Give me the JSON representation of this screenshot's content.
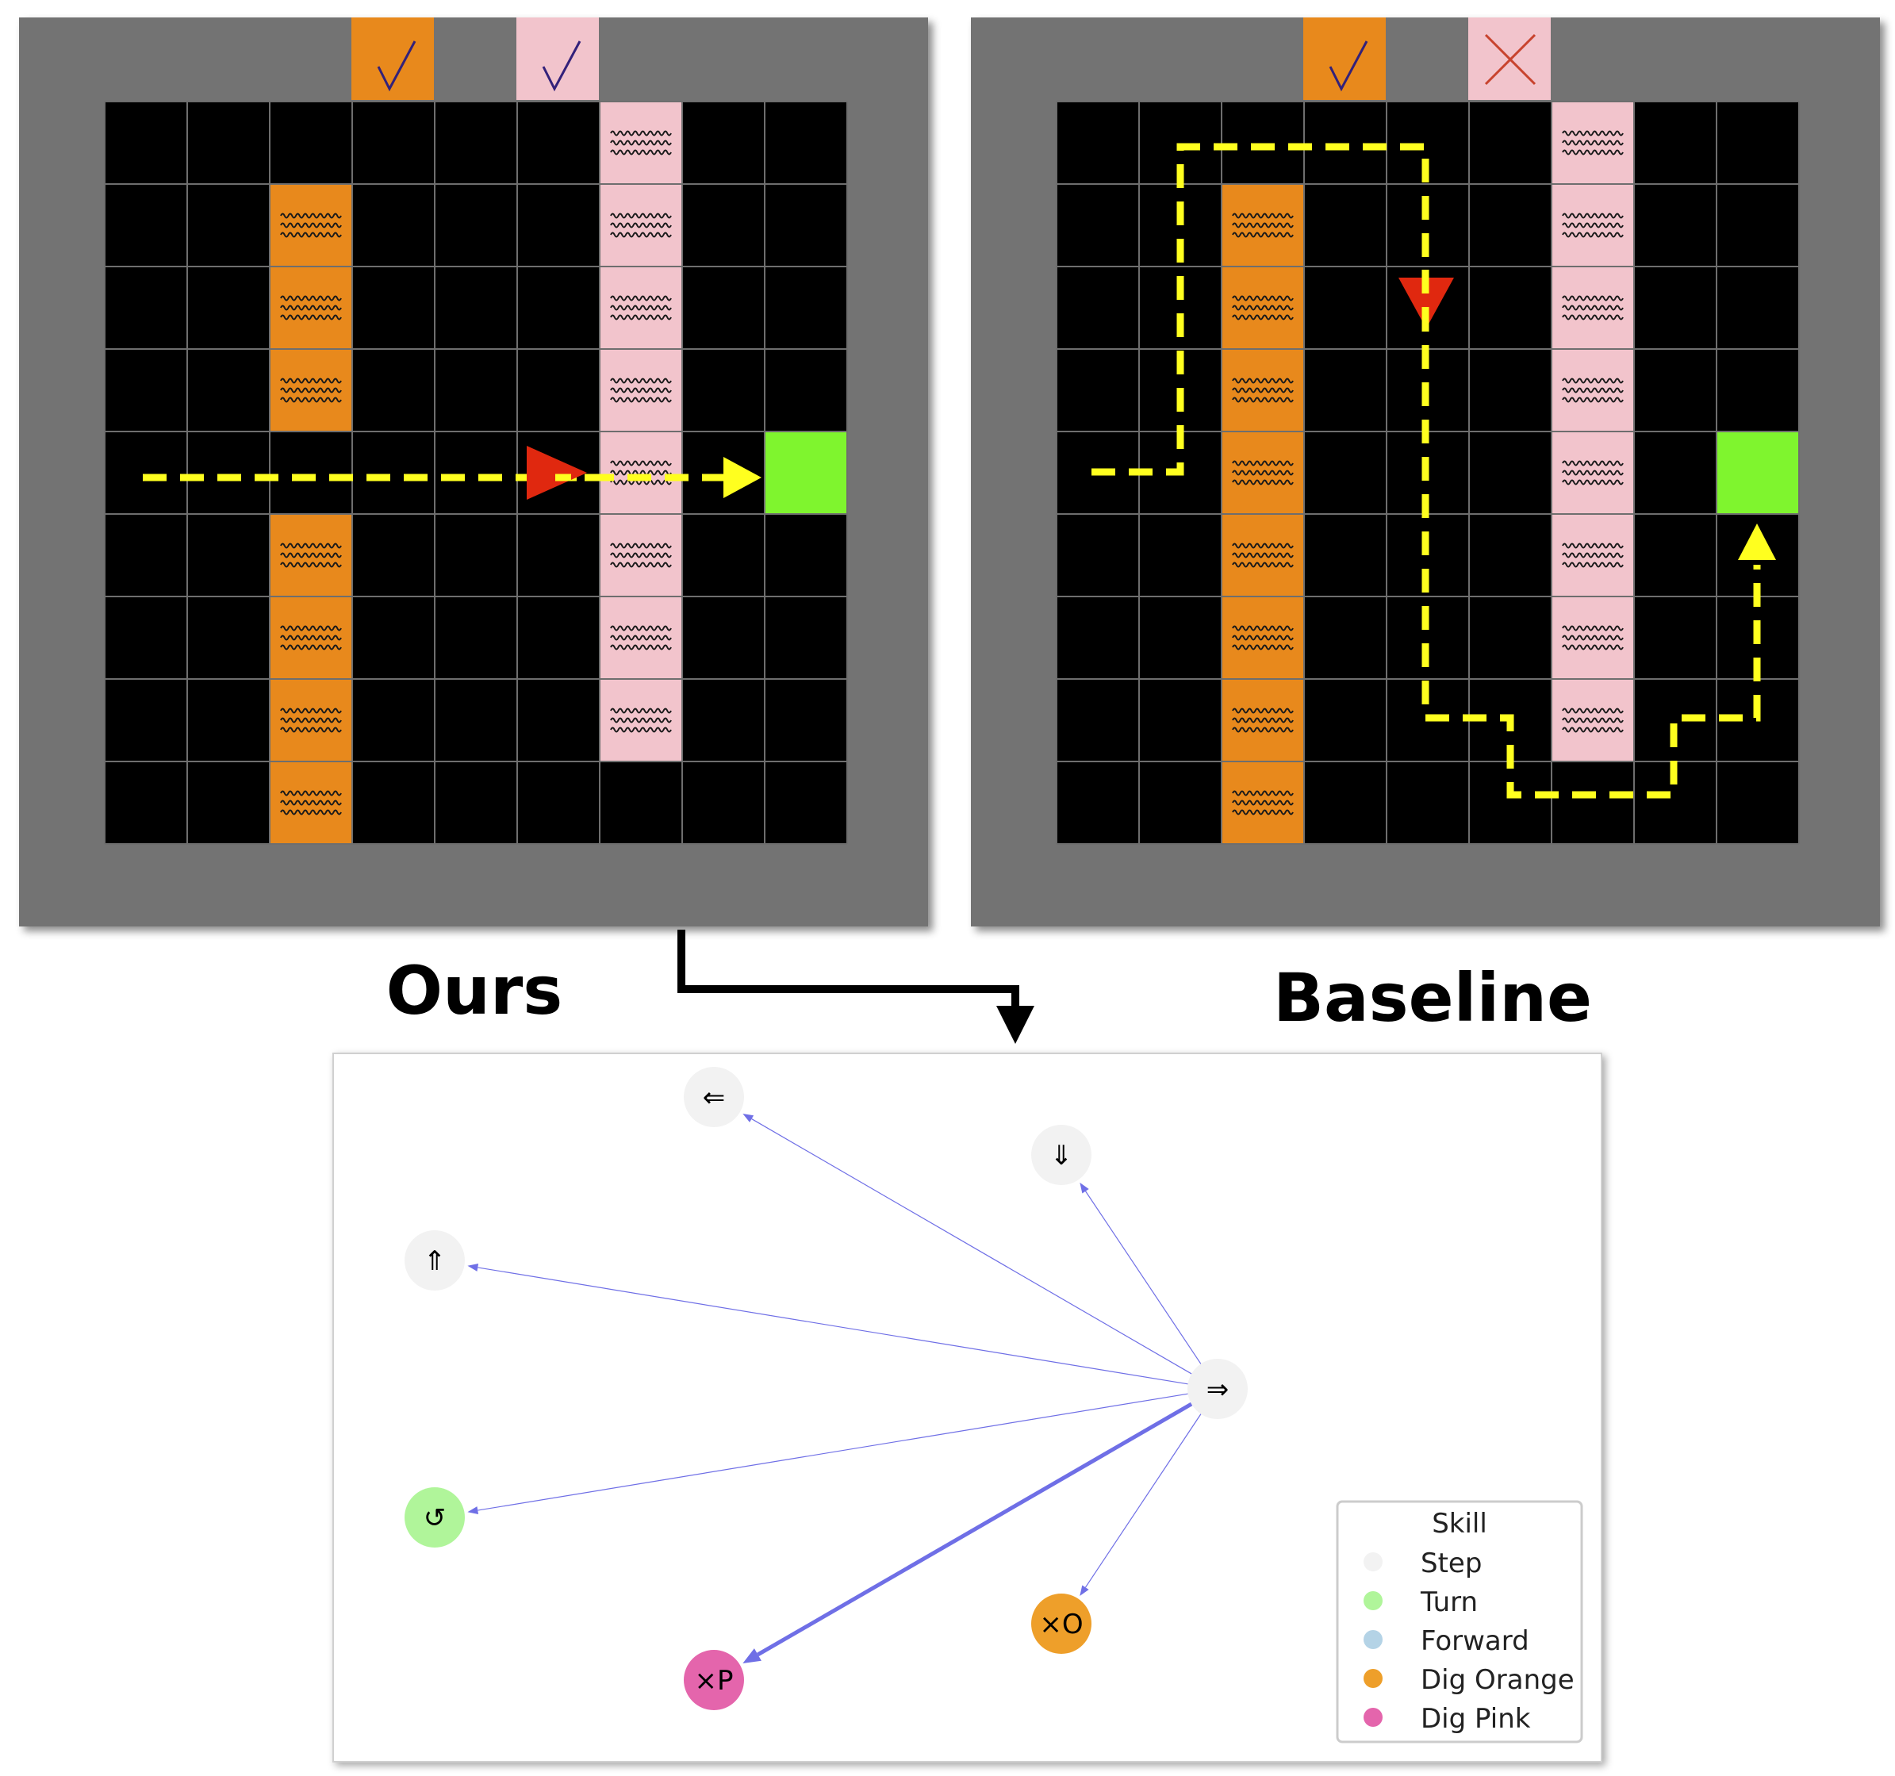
{
  "labels": {
    "ours": "Ours",
    "baseline": "Baseline"
  },
  "ours": {
    "indicators": [
      {
        "name": "orange-indicator",
        "color": "#e8891c",
        "mark": "check-icon"
      },
      {
        "name": "pink-indicator",
        "color": "#f2c4cc",
        "mark": "check-icon"
      }
    ]
  },
  "baseline": {
    "indicators": [
      {
        "name": "orange-indicator",
        "color": "#e8891c",
        "mark": "check-icon"
      },
      {
        "name": "pink-indicator",
        "color": "#f2c4cc",
        "mark": "cross-icon"
      }
    ]
  },
  "colors": {
    "frame": "#737373",
    "floor": "#000000",
    "grid": "#6e6e6e",
    "orange": "#e8891c",
    "pink": "#f2c4cc",
    "goal": "#7ff52e",
    "agent": "#e0280f",
    "path": "#ffff1f"
  },
  "graph": {
    "nodes": [
      {
        "id": "left",
        "label": "⇐",
        "skill": "Step"
      },
      {
        "id": "down",
        "label": "⇓",
        "skill": "Step"
      },
      {
        "id": "up",
        "label": "⇑",
        "skill": "Step"
      },
      {
        "id": "right",
        "label": "⇒",
        "skill": "Step"
      },
      {
        "id": "turn",
        "label": "↺",
        "skill": "Turn"
      },
      {
        "id": "dig_orange",
        "label": "×O",
        "skill": "Dig Orange"
      },
      {
        "id": "dig_pink",
        "label": "×P",
        "skill": "Dig Pink"
      }
    ],
    "edges": [
      {
        "from": "right",
        "to": "left",
        "weight": 1
      },
      {
        "from": "right",
        "to": "down",
        "weight": 1
      },
      {
        "from": "right",
        "to": "up",
        "weight": 1
      },
      {
        "from": "right",
        "to": "turn",
        "weight": 1
      },
      {
        "from": "right",
        "to": "dig_orange",
        "weight": 1
      },
      {
        "from": "right",
        "to": "dig_pink",
        "weight": 5
      }
    ],
    "edge_color": "#6f6fe6"
  },
  "legend": {
    "title": "Skill",
    "items": [
      {
        "label": "Step",
        "color": "#f2f2f2"
      },
      {
        "label": "Turn",
        "color": "#b0f59a"
      },
      {
        "label": "Forward",
        "color": "#b4d3e6"
      },
      {
        "label": "Dig Orange",
        "color": "#ee9f2a"
      },
      {
        "label": "Dig Pink",
        "color": "#e465ac"
      }
    ]
  }
}
